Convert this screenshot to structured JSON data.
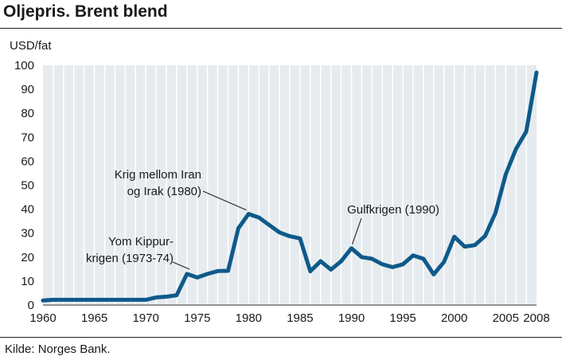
{
  "header": {
    "title": "Oljepris. Brent blend"
  },
  "footer": {
    "source": "Kilde: Norges Bank."
  },
  "colors": {
    "line": "#0e5a8a",
    "plot_bg": "#e6ebef",
    "grid": "#ffffff",
    "text": "#1a1a1a"
  },
  "chart_data": {
    "type": "line",
    "title": "Oljepris. Brent blend",
    "ylabel": "USD/fat",
    "xlabel": "",
    "xlim": [
      1960,
      2008
    ],
    "ylim": [
      0,
      100
    ],
    "yticks": [
      0,
      10,
      20,
      30,
      40,
      50,
      60,
      70,
      80,
      90,
      100
    ],
    "xticks": [
      1960,
      1965,
      1970,
      1975,
      1980,
      1985,
      1990,
      1995,
      2000,
      2005,
      2008
    ],
    "grid": "vertical lines every year on shaded background",
    "series": [
      {
        "x": [
          1960,
          1961,
          1962,
          1963,
          1964,
          1965,
          1966,
          1967,
          1968,
          1969,
          1970,
          1971,
          1972,
          1973,
          1974,
          1975,
          1976,
          1977,
          1978,
          1979,
          1980,
          1981,
          1982,
          1983,
          1984,
          1985,
          1986,
          1987,
          1988,
          1989,
          1990,
          1991,
          1992,
          1993,
          1994,
          1995,
          1996,
          1997,
          1998,
          1999,
          2000,
          2001,
          2002,
          2003,
          2004,
          2005,
          2006,
          2007,
          2008
        ],
        "y": [
          1.9,
          2.2,
          2.2,
          2.2,
          2.2,
          2.2,
          2.2,
          2.2,
          2.2,
          2.2,
          2.2,
          3.2,
          3.5,
          4.1,
          13.0,
          11.5,
          13.0,
          14.2,
          14.3,
          32.0,
          38.0,
          36.5,
          33.4,
          30.3,
          28.7,
          27.8,
          14.1,
          18.3,
          14.8,
          18.3,
          23.7,
          20.0,
          19.3,
          17.0,
          15.8,
          17.0,
          20.7,
          19.3,
          12.8,
          18.0,
          28.5,
          24.4,
          25.0,
          28.8,
          38.3,
          54.5,
          65.1,
          72.4,
          97.0
        ]
      }
    ],
    "annotations": [
      {
        "lines": [
          "Yom Kippur-",
          "krigen (1973-74)"
        ],
        "year": 1974
      },
      {
        "lines": [
          "Krig mellom Iran",
          "og Irak (1980)"
        ],
        "year": 1980
      },
      {
        "lines": [
          "Gulfkrigen (1990)"
        ],
        "year": 1990
      }
    ]
  }
}
